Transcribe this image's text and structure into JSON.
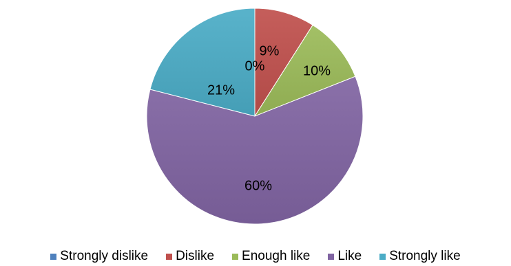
{
  "chart_data": {
    "type": "pie",
    "title": "",
    "categories": [
      "Strongly dislike",
      "Dislike",
      "Enough like",
      "Like",
      "Strongly like"
    ],
    "values": [
      0,
      9,
      10,
      60,
      21
    ],
    "labels": [
      "0%",
      "9%",
      "10%",
      "60%",
      "21%"
    ],
    "colors": [
      "#4f81bd",
      "#c0504d",
      "#9bbb59",
      "#8064a2",
      "#4bacc6"
    ],
    "start_angle_deg": 0,
    "direction": "clockwise",
    "legend_position": "bottom",
    "unit": "%"
  }
}
